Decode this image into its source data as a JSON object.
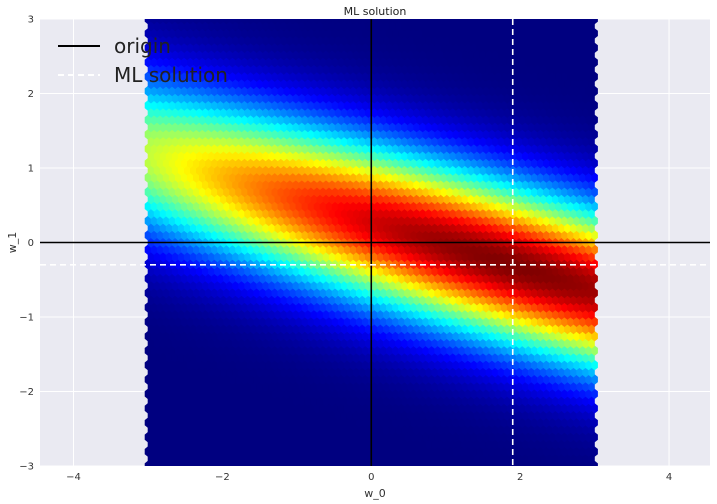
{
  "chart_data": {
    "type": "heatmap",
    "title": "ML solution",
    "xlabel": "w_0",
    "ylabel": "w_1",
    "xlim": [
      -4.45,
      4.55
    ],
    "ylim": [
      -3,
      3
    ],
    "xticks": [
      -4,
      -2,
      0,
      2,
      4
    ],
    "yticks": [
      -3,
      -2,
      -1,
      0,
      1,
      2,
      3
    ],
    "xtick_labels": [
      "−4",
      "−2",
      "0",
      "2",
      "4"
    ],
    "ytick_labels": [
      "−3",
      "−2",
      "−1",
      "0",
      "1",
      "2",
      "3"
    ],
    "grid": true,
    "background_color": "#eaeaf2",
    "colormap": "jet",
    "hexbin_extent": {
      "x": [
        -3,
        3
      ],
      "y": [
        -3,
        3
      ]
    },
    "likelihood_peak": {
      "w_0": 1.9,
      "w_1": -0.3
    },
    "ridge_slope": -0.3,
    "series": [
      {
        "name": "origin",
        "kind": "crosshair",
        "x": 0,
        "y": 0,
        "color": "#000000",
        "linestyle": "solid"
      },
      {
        "name": "ML solution",
        "kind": "crosshair",
        "x": 1.9,
        "y": -0.3,
        "color": "#ffffff",
        "linestyle": "dashed"
      }
    ],
    "legend": {
      "position": "top-left",
      "entries": [
        "origin",
        "ML solution"
      ]
    }
  }
}
